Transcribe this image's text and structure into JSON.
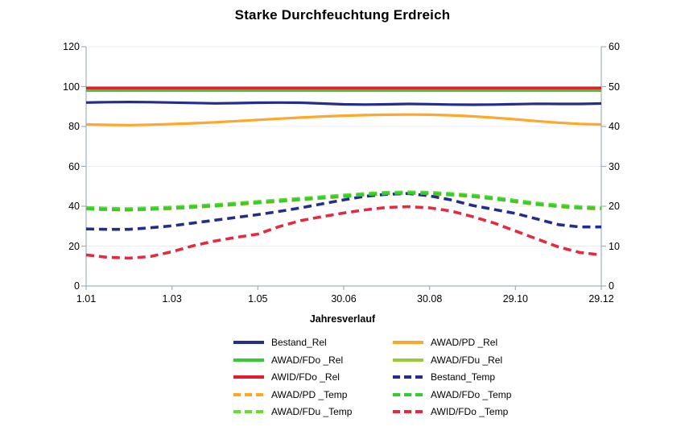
{
  "chart_data": {
    "type": "line",
    "title": "Starke Durchfeuchtung Erdreich",
    "xlabel": "Jahresverlauf",
    "x_ticks": [
      "1.01",
      "1.03",
      "1.05",
      "30.06",
      "30.08",
      "29.10",
      "29.12"
    ],
    "x_range_months": [
      0,
      12
    ],
    "left_axis": {
      "ticks": [
        0,
        20,
        40,
        60,
        80,
        100,
        120
      ],
      "range": [
        0,
        120
      ]
    },
    "right_axis": {
      "ticks": [
        0,
        10,
        20,
        30,
        40,
        50,
        60
      ],
      "range": [
        0,
        60
      ]
    },
    "grid": true,
    "legend_position": "bottom",
    "colors": {
      "bestand": "#232E8A",
      "awad_pd": "#FFA62B",
      "awad_fdo": "#33CC33",
      "awad_fdu_rel": "#99CC33",
      "awad_fdu_temp": "#66DD33",
      "awid_fdo_rel": "#E8192C",
      "awid_fdo_temp": "#E52A40",
      "axis_line": "#9FB0BD",
      "gridline": "#ECECEF"
    },
    "series": [
      {
        "name": "AWAD/PD _Temp",
        "axis": "right",
        "style": "dashed",
        "color": "#FFA62B",
        "width": 3.6,
        "values": [
          19.3,
          19.1,
          19.0,
          19.2,
          19.4,
          19.7,
          20.0,
          20.4,
          20.8,
          21.2,
          21.6,
          22.0,
          22.4,
          22.8,
          23.1,
          23.2,
          23.1,
          22.8,
          22.4,
          21.8,
          21.1,
          20.4,
          19.9,
          19.5,
          19.3
        ]
      },
      {
        "name": "Bestand_Temp",
        "axis": "right",
        "style": "dashed",
        "color": "#232E8A",
        "width": 3.6,
        "values": [
          14.3,
          14.2,
          14.2,
          14.6,
          15.1,
          15.8,
          16.5,
          17.2,
          17.9,
          18.7,
          19.6,
          20.6,
          21.6,
          22.5,
          23.0,
          23.2,
          22.6,
          21.6,
          20.2,
          19.2,
          18.2,
          16.8,
          15.4,
          14.8,
          14.8
        ]
      },
      {
        "name": "AWAD/FDu _Temp",
        "axis": "right",
        "style": "dashed",
        "color": "#66DD33",
        "width": 3.6,
        "values": [
          19.7,
          19.5,
          19.4,
          19.6,
          19.8,
          20.1,
          20.4,
          20.8,
          21.2,
          21.6,
          22.0,
          22.4,
          22.8,
          23.2,
          23.5,
          23.6,
          23.5,
          23.2,
          22.8,
          22.2,
          21.5,
          20.8,
          20.3,
          19.9,
          19.7
        ]
      },
      {
        "name": "AWAD/FDo _Temp",
        "axis": "right",
        "style": "dashed",
        "color": "#33CC33",
        "width": 3.6,
        "values": [
          19.4,
          19.2,
          19.1,
          19.3,
          19.5,
          19.8,
          20.1,
          20.5,
          20.9,
          21.3,
          21.7,
          22.1,
          22.5,
          22.9,
          23.2,
          23.3,
          23.2,
          22.9,
          22.5,
          21.9,
          21.2,
          20.5,
          20.0,
          19.6,
          19.4
        ]
      },
      {
        "name": "AWID/FDo _Temp",
        "axis": "right",
        "style": "dashed",
        "color": "#E52A40",
        "width": 3.6,
        "values": [
          7.8,
          7.2,
          7.0,
          7.4,
          8.6,
          10.1,
          11.3,
          12.2,
          13.0,
          14.9,
          16.4,
          17.4,
          18.3,
          19.1,
          19.7,
          19.9,
          19.6,
          18.8,
          17.4,
          15.8,
          13.8,
          11.8,
          9.8,
          8.4,
          7.8
        ]
      },
      {
        "name": "AWAD/FDu _Rel",
        "axis": "left",
        "style": "solid",
        "color": "#99CC33",
        "width": 3.2,
        "values": [
          98.5,
          98.5
        ]
      },
      {
        "name": "AWAD/FDo _Rel",
        "axis": "left",
        "style": "solid",
        "color": "#33CC33",
        "width": 3.2,
        "values": [
          98.0,
          98.0
        ]
      },
      {
        "name": "AWID/FDo _Rel",
        "axis": "left",
        "style": "solid",
        "color": "#E8192C",
        "width": 3.4,
        "values": [
          99.3,
          99.3
        ]
      },
      {
        "name": "Bestand_Rel",
        "axis": "left",
        "style": "solid",
        "color": "#232E8A",
        "width": 3.2,
        "values": [
          92.0,
          92.2,
          92.3,
          92.2,
          92.0,
          91.8,
          91.6,
          91.7,
          91.9,
          92.0,
          91.9,
          91.5,
          91.1,
          91.0,
          91.1,
          91.3,
          91.2,
          91.0,
          90.9,
          91.0,
          91.2,
          91.4,
          91.3,
          91.3,
          91.5
        ]
      },
      {
        "name": "AWAD/PD _Rel",
        "axis": "left",
        "style": "solid",
        "color": "#FFA62B",
        "width": 3.2,
        "values": [
          81.0,
          80.8,
          80.7,
          80.9,
          81.2,
          81.6,
          82.1,
          82.7,
          83.3,
          83.9,
          84.5,
          85.0,
          85.4,
          85.7,
          85.9,
          86.0,
          85.9,
          85.6,
          85.1,
          84.4,
          83.6,
          82.7,
          81.9,
          81.3,
          81.0
        ]
      }
    ],
    "legend": [
      {
        "label": "Bestand_Rel",
        "color": "#232E8A",
        "style": "solid"
      },
      {
        "label": "AWAD/PD _Rel",
        "color": "#FFA62B",
        "style": "solid"
      },
      {
        "label": "AWAD/FDo _Rel",
        "color": "#33CC33",
        "style": "solid"
      },
      {
        "label": "AWAD/FDu _Rel",
        "color": "#99CC33",
        "style": "solid"
      },
      {
        "label": "AWID/FDo _Rel",
        "color": "#E8192C",
        "style": "solid"
      },
      {
        "label": "Bestand_Temp",
        "color": "#232E8A",
        "style": "dashed"
      },
      {
        "label": "AWAD/PD _Temp",
        "color": "#FFA62B",
        "style": "dashed"
      },
      {
        "label": "AWAD/FDo _Temp",
        "color": "#33CC33",
        "style": "dashed"
      },
      {
        "label": "AWAD/FDu _Temp",
        "color": "#66DD33",
        "style": "dashed"
      },
      {
        "label": "AWID/FDo _Temp",
        "color": "#E52A40",
        "style": "dashed"
      }
    ]
  }
}
